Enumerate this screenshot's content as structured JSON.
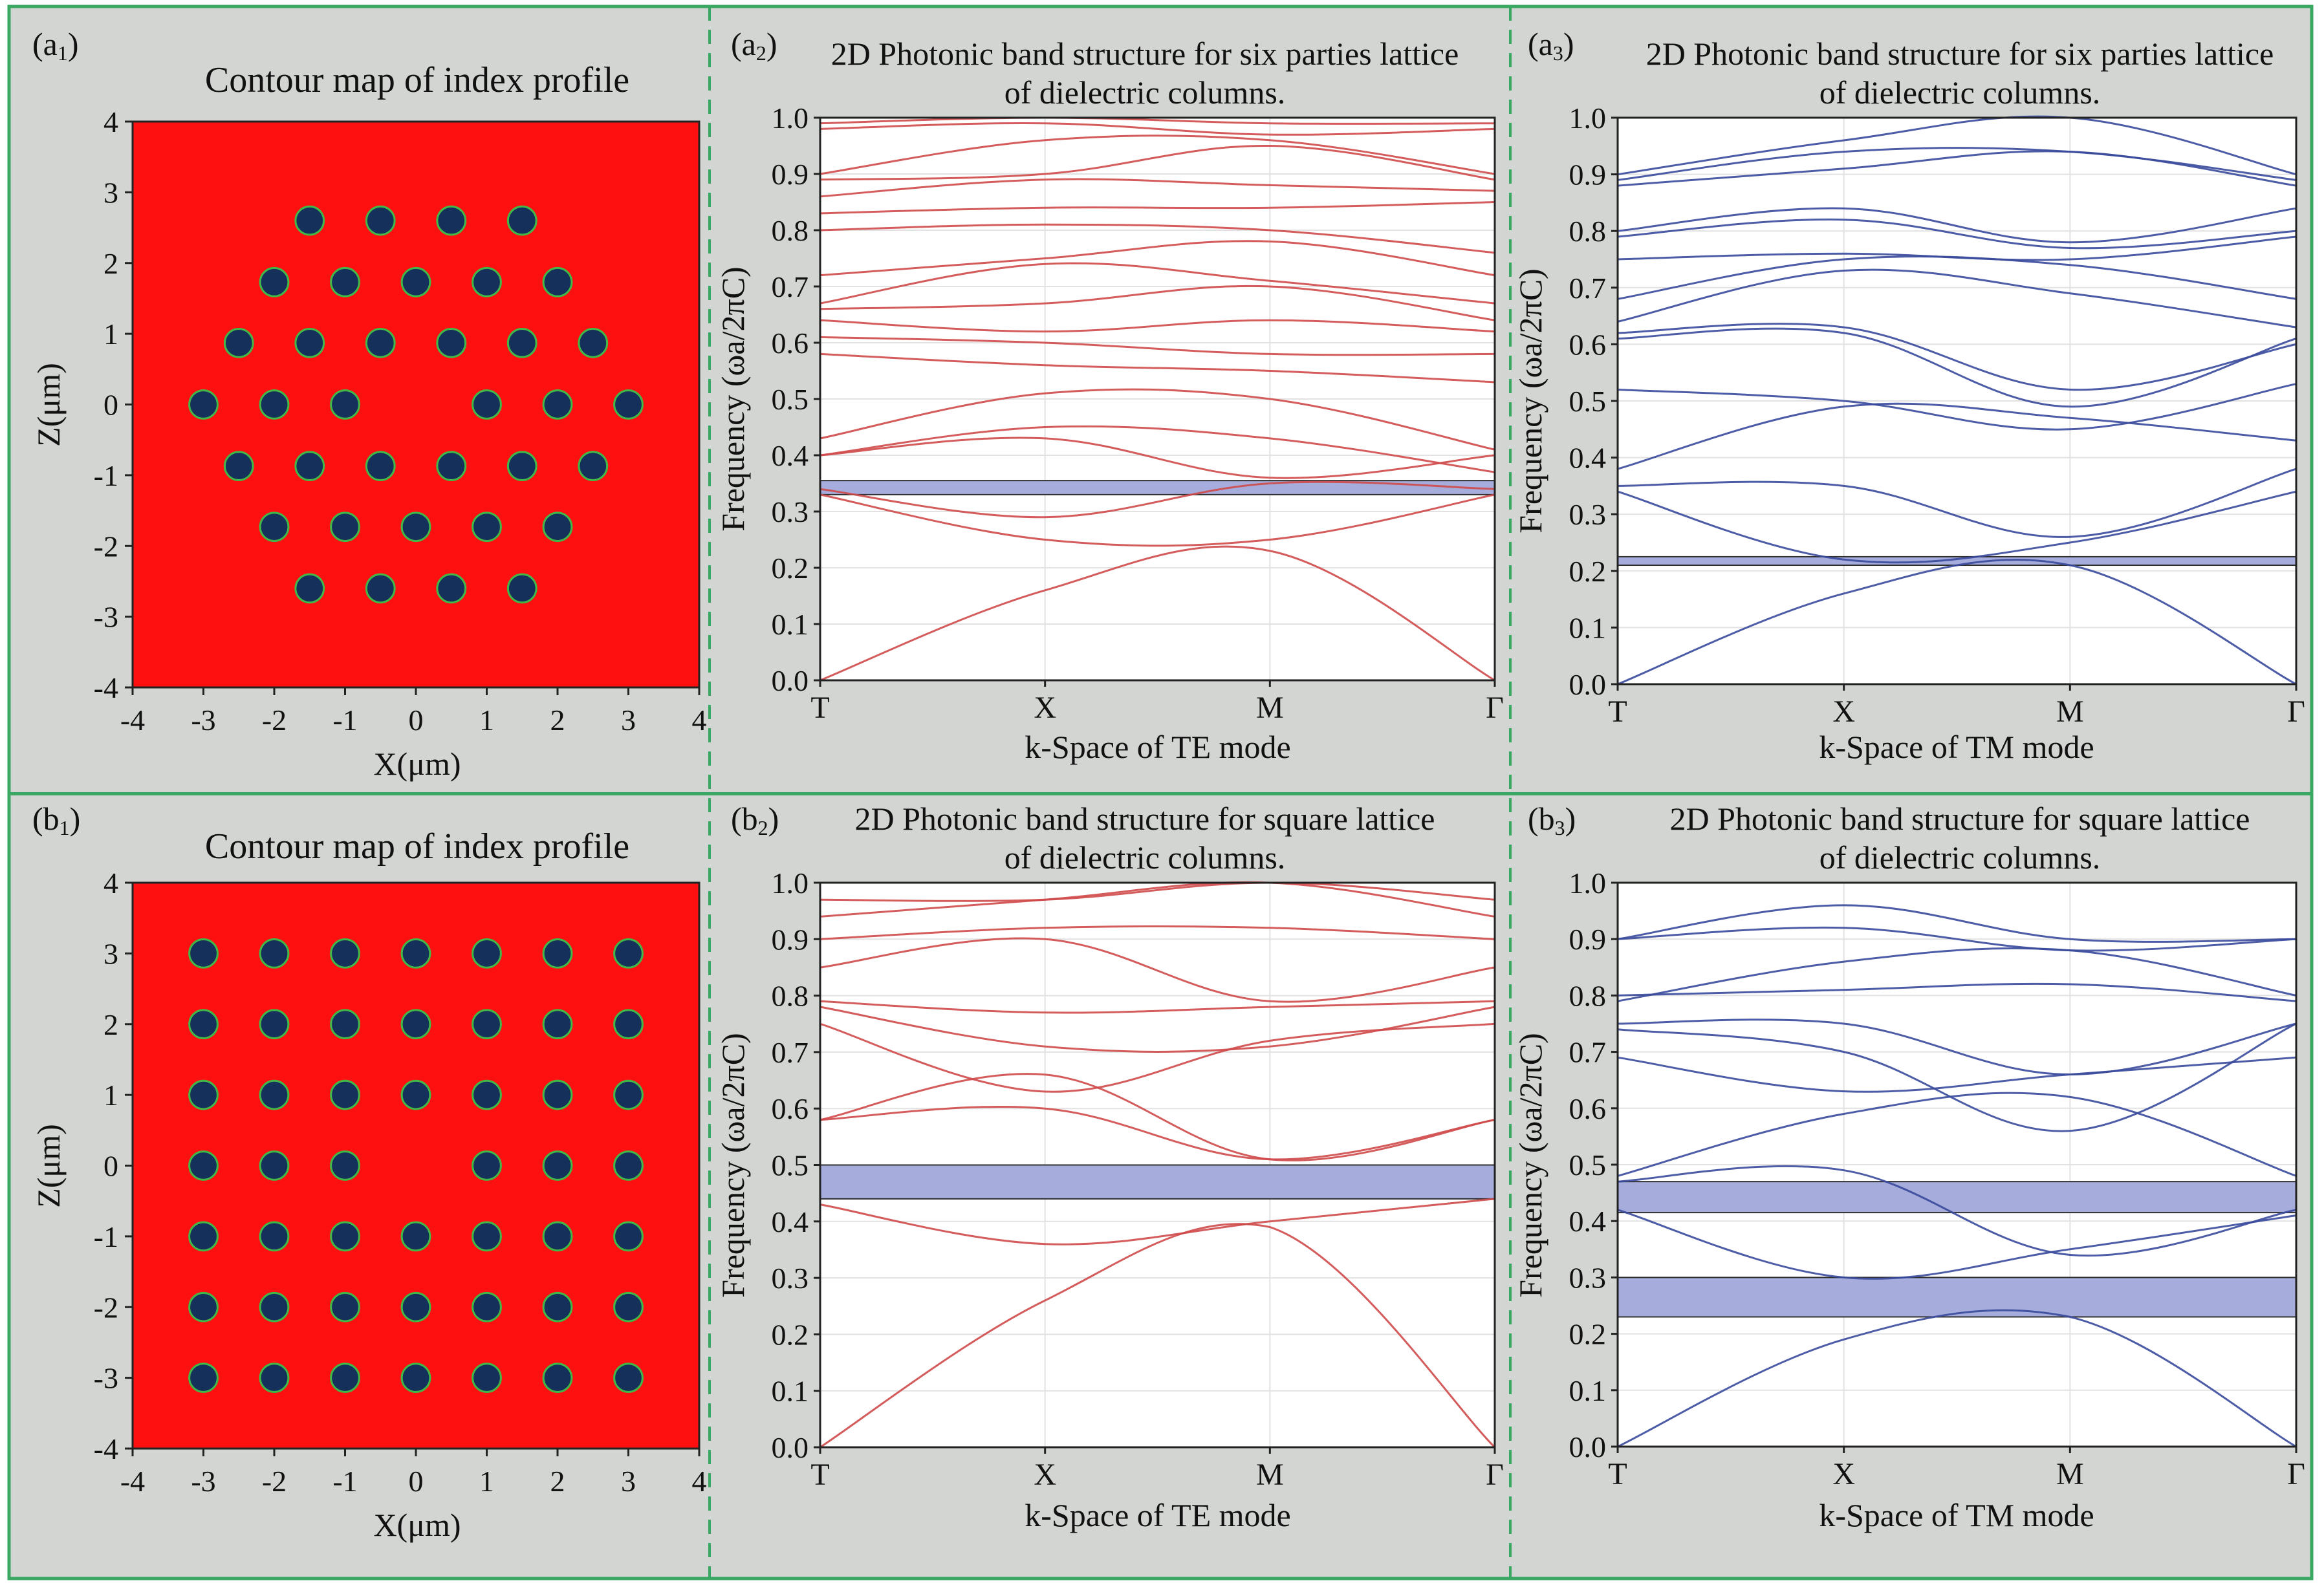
{
  "colors": {
    "panel_bg": "#d3d5d2",
    "frame": "#3aa863",
    "divider": "#3aa863",
    "index_bg": "#ff1010",
    "rod_fill": "#15305a",
    "rod_rim": "#41b848",
    "te_band": "#cf4a4a",
    "tm_band": "#3a4a9c",
    "gap_fill": "#a6acdc",
    "gap_stroke": "#303030",
    "grid": "#e2e2e2"
  },
  "panels": {
    "a1": {
      "label_main": "a",
      "label_sub": "1",
      "title": "Contour map of index profile",
      "xlabel": "X(μm)",
      "ylabel": "Z(μm)"
    },
    "a2": {
      "label_main": "a",
      "label_sub": "2",
      "title_line1": "2D Photonic band structure for six parties lattice",
      "title_line2": "of dielectric columns.",
      "xlabel": "k-Space of TE mode",
      "ylabel": "Frequency (ωa/2πC)"
    },
    "a3": {
      "label_main": "a",
      "label_sub": "3",
      "title_line1": "2D Photonic band structure for six parties lattice",
      "title_line2": "of dielectric columns.",
      "xlabel": "k-Space of TM mode",
      "ylabel": "Frequency (ωa/2πC)"
    },
    "b1": {
      "label_main": "b",
      "label_sub": "1",
      "title": "Contour map of index profile",
      "xlabel": "X(μm)",
      "ylabel": "Z(μm)"
    },
    "b2": {
      "label_main": "b",
      "label_sub": "2",
      "title_line1": "2D Photonic band structure for square lattice",
      "title_line2": "of dielectric columns.",
      "xlabel": "k-Space of TE mode",
      "ylabel": "Frequency (ωa/2πC)"
    },
    "b3": {
      "label_main": "b",
      "label_sub": "3",
      "title_line1": "2D Photonic band structure for square lattice",
      "title_line2": "of dielectric columns.",
      "xlabel": "k-Space of TM mode",
      "ylabel": "Frequency (ωa/2πC)"
    }
  },
  "chart_data": [
    {
      "id": "a1",
      "type": "contour-map",
      "title": "Contour map of index profile",
      "xlabel": "X(μm)",
      "ylabel": "Z(μm)",
      "xlim": [
        -4,
        4
      ],
      "ylim": [
        -4,
        4
      ],
      "xticks": [
        "-4",
        "-3",
        "-2",
        "-1",
        "0",
        "1",
        "2",
        "3",
        "4"
      ],
      "yticks": [
        "4",
        "3",
        "2",
        "1",
        "0",
        "-1",
        "-2",
        "-3",
        "-4"
      ],
      "rod_radius_um": 0.2,
      "rods": [
        [
          -1.5,
          2.6
        ],
        [
          -0.5,
          2.6
        ],
        [
          0.5,
          2.6
        ],
        [
          1.5,
          2.6
        ],
        [
          -2.0,
          1.73
        ],
        [
          -1.0,
          1.73
        ],
        [
          0.0,
          1.73
        ],
        [
          1.0,
          1.73
        ],
        [
          2.0,
          1.73
        ],
        [
          -2.5,
          0.87
        ],
        [
          -1.5,
          0.87
        ],
        [
          -0.5,
          0.87
        ],
        [
          0.5,
          0.87
        ],
        [
          1.5,
          0.87
        ],
        [
          2.5,
          0.87
        ],
        [
          -3.0,
          0
        ],
        [
          -2.0,
          0
        ],
        [
          -1.0,
          0
        ],
        [
          1.0,
          0
        ],
        [
          2.0,
          0
        ],
        [
          3.0,
          0
        ],
        [
          -2.5,
          -0.87
        ],
        [
          -1.5,
          -0.87
        ],
        [
          -0.5,
          -0.87
        ],
        [
          0.5,
          -0.87
        ],
        [
          1.5,
          -0.87
        ],
        [
          2.5,
          -0.87
        ],
        [
          -2.0,
          -1.73
        ],
        [
          -1.0,
          -1.73
        ],
        [
          0.0,
          -1.73
        ],
        [
          1.0,
          -1.73
        ],
        [
          2.0,
          -1.73
        ],
        [
          -1.5,
          -2.6
        ],
        [
          -0.5,
          -2.6
        ],
        [
          0.5,
          -2.6
        ],
        [
          1.5,
          -2.6
        ]
      ]
    },
    {
      "id": "b1",
      "type": "contour-map",
      "title": "Contour map of index profile",
      "xlabel": "X(μm)",
      "ylabel": "Z(μm)",
      "xlim": [
        -4,
        4
      ],
      "ylim": [
        -4,
        4
      ],
      "xticks": [
        "-4",
        "-3",
        "-2",
        "-1",
        "0",
        "1",
        "2",
        "3",
        "4"
      ],
      "yticks": [
        "4",
        "3",
        "2",
        "1",
        "0",
        "-1",
        "-2",
        "-3",
        "-4"
      ],
      "rod_radius_um": 0.2,
      "rods": [
        [
          -3,
          3
        ],
        [
          -2,
          3
        ],
        [
          -1,
          3
        ],
        [
          0,
          3
        ],
        [
          1,
          3
        ],
        [
          2,
          3
        ],
        [
          3,
          3
        ],
        [
          -3,
          2
        ],
        [
          -2,
          2
        ],
        [
          -1,
          2
        ],
        [
          0,
          2
        ],
        [
          1,
          2
        ],
        [
          2,
          2
        ],
        [
          3,
          2
        ],
        [
          -3,
          1
        ],
        [
          -2,
          1
        ],
        [
          -1,
          1
        ],
        [
          0,
          1
        ],
        [
          1,
          1
        ],
        [
          2,
          1
        ],
        [
          3,
          1
        ],
        [
          -3,
          0
        ],
        [
          -2,
          0
        ],
        [
          -1,
          0
        ],
        [
          1,
          0
        ],
        [
          2,
          0
        ],
        [
          3,
          0
        ],
        [
          -3,
          -1
        ],
        [
          -2,
          -1
        ],
        [
          -1,
          -1
        ],
        [
          0,
          -1
        ],
        [
          1,
          -1
        ],
        [
          2,
          -1
        ],
        [
          3,
          -1
        ],
        [
          -3,
          -2
        ],
        [
          -2,
          -2
        ],
        [
          -1,
          -2
        ],
        [
          0,
          -2
        ],
        [
          1,
          -2
        ],
        [
          2,
          -2
        ],
        [
          3,
          -2
        ],
        [
          -3,
          -3
        ],
        [
          -2,
          -3
        ],
        [
          -1,
          -3
        ],
        [
          0,
          -3
        ],
        [
          1,
          -3
        ],
        [
          2,
          -3
        ],
        [
          3,
          -3
        ]
      ]
    },
    {
      "id": "a2",
      "type": "line",
      "mode": "TE",
      "title": "2D Photonic band structure for six parties lattice of dielectric columns.",
      "xlabel": "k-Space of TE mode",
      "ylabel": "Frequency (ωa/2πC)",
      "ylim": [
        0,
        1
      ],
      "xlim": [
        0,
        3
      ],
      "kpoints": [
        {
          "x": 0,
          "label": "T"
        },
        {
          "x": 1,
          "label": "X"
        },
        {
          "x": 2,
          "label": "M"
        },
        {
          "x": 3,
          "label": "Γ"
        }
      ],
      "yticks": [
        "0.0",
        "0.1",
        "0.2",
        "0.3",
        "0.4",
        "0.5",
        "0.6",
        "0.7",
        "0.8",
        "0.9",
        "1.0"
      ],
      "gaps": [
        [
          0.33,
          0.355
        ]
      ],
      "bands": [
        [
          0.0,
          0.16,
          0.23,
          0.0
        ],
        [
          0.33,
          0.25,
          0.25,
          0.33
        ],
        [
          0.34,
          0.29,
          0.35,
          0.34
        ],
        [
          0.4,
          0.43,
          0.36,
          0.4
        ],
        [
          0.4,
          0.45,
          0.43,
          0.37
        ],
        [
          0.43,
          0.51,
          0.5,
          0.41
        ],
        [
          0.58,
          0.56,
          0.55,
          0.53
        ],
        [
          0.61,
          0.6,
          0.58,
          0.58
        ],
        [
          0.64,
          0.62,
          0.64,
          0.62
        ],
        [
          0.66,
          0.67,
          0.7,
          0.64
        ],
        [
          0.67,
          0.74,
          0.71,
          0.67
        ],
        [
          0.72,
          0.75,
          0.78,
          0.72
        ],
        [
          0.8,
          0.81,
          0.8,
          0.76
        ],
        [
          0.83,
          0.84,
          0.84,
          0.85
        ],
        [
          0.86,
          0.89,
          0.88,
          0.87
        ],
        [
          0.89,
          0.9,
          0.95,
          0.89
        ],
        [
          0.9,
          0.96,
          0.96,
          0.9
        ],
        [
          0.98,
          0.99,
          0.97,
          0.98
        ],
        [
          0.99,
          1.0,
          0.99,
          0.99
        ]
      ]
    },
    {
      "id": "a3",
      "type": "line",
      "mode": "TM",
      "title": "2D Photonic band structure for six parties lattice of dielectric columns.",
      "xlabel": "k-Space of TM mode",
      "ylabel": "Frequency (ωa/2πC)",
      "ylim": [
        0,
        1
      ],
      "xlim": [
        0,
        3
      ],
      "kpoints": [
        {
          "x": 0,
          "label": "T"
        },
        {
          "x": 1,
          "label": "X"
        },
        {
          "x": 2,
          "label": "M"
        },
        {
          "x": 3,
          "label": "Γ"
        }
      ],
      "yticks": [
        "0.0",
        "0.1",
        "0.2",
        "0.3",
        "0.4",
        "0.5",
        "0.6",
        "0.7",
        "0.8",
        "0.9",
        "1.0"
      ],
      "gaps": [
        [
          0.21,
          0.225
        ]
      ],
      "bands": [
        [
          0.0,
          0.16,
          0.21,
          0.0
        ],
        [
          0.34,
          0.22,
          0.25,
          0.34
        ],
        [
          0.35,
          0.35,
          0.26,
          0.38
        ],
        [
          0.38,
          0.49,
          0.47,
          0.43
        ],
        [
          0.52,
          0.5,
          0.45,
          0.53
        ],
        [
          0.61,
          0.62,
          0.49,
          0.61
        ],
        [
          0.62,
          0.63,
          0.52,
          0.6
        ],
        [
          0.64,
          0.73,
          0.69,
          0.63
        ],
        [
          0.68,
          0.75,
          0.74,
          0.68
        ],
        [
          0.75,
          0.76,
          0.75,
          0.79
        ],
        [
          0.79,
          0.82,
          0.77,
          0.8
        ],
        [
          0.8,
          0.84,
          0.78,
          0.84
        ],
        [
          0.88,
          0.91,
          0.94,
          0.88
        ],
        [
          0.89,
          0.94,
          0.94,
          0.89
        ],
        [
          0.9,
          0.96,
          1.0,
          0.9
        ]
      ]
    },
    {
      "id": "b2",
      "type": "line",
      "mode": "TE",
      "title": "2D Photonic band structure for square lattice of dielectric columns.",
      "xlabel": "k-Space of TE mode",
      "ylabel": "Frequency (ωa/2πC)",
      "ylim": [
        0,
        1
      ],
      "xlim": [
        0,
        3
      ],
      "kpoints": [
        {
          "x": 0,
          "label": "T"
        },
        {
          "x": 1,
          "label": "X"
        },
        {
          "x": 2,
          "label": "M"
        },
        {
          "x": 3,
          "label": "Γ"
        }
      ],
      "yticks": [
        "0.0",
        "0.1",
        "0.2",
        "0.3",
        "0.4",
        "0.5",
        "0.6",
        "0.7",
        "0.8",
        "0.9",
        "1.0"
      ],
      "gaps": [
        [
          0.44,
          0.5
        ]
      ],
      "bands": [
        [
          0.0,
          0.26,
          0.39,
          0.0
        ],
        [
          0.43,
          0.36,
          0.4,
          0.44
        ],
        [
          0.58,
          0.6,
          0.51,
          0.58
        ],
        [
          0.58,
          0.66,
          0.51,
          0.58
        ],
        [
          0.75,
          0.63,
          0.72,
          0.75
        ],
        [
          0.78,
          0.71,
          0.71,
          0.78
        ],
        [
          0.79,
          0.77,
          0.78,
          0.79
        ],
        [
          0.85,
          0.9,
          0.79,
          0.85
        ],
        [
          0.9,
          0.92,
          0.92,
          0.9
        ],
        [
          0.94,
          0.97,
          1.0,
          0.94
        ],
        [
          0.97,
          0.97,
          1.0,
          0.97
        ]
      ]
    },
    {
      "id": "b3",
      "type": "line",
      "mode": "TM",
      "title": "2D Photonic band structure for square lattice of dielectric columns.",
      "xlabel": "k-Space of TM mode",
      "ylabel": "Frequency (ωa/2πC)",
      "ylim": [
        0,
        1
      ],
      "xlim": [
        0,
        3
      ],
      "kpoints": [
        {
          "x": 0,
          "label": "T"
        },
        {
          "x": 1,
          "label": "X"
        },
        {
          "x": 2,
          "label": "M"
        },
        {
          "x": 3,
          "label": "Γ"
        }
      ],
      "yticks": [
        "0.0",
        "0.1",
        "0.2",
        "0.3",
        "0.4",
        "0.5",
        "0.6",
        "0.7",
        "0.8",
        "0.9",
        "1.0"
      ],
      "gaps": [
        [
          0.23,
          0.3
        ],
        [
          0.415,
          0.47
        ]
      ],
      "bands": [
        [
          0.0,
          0.19,
          0.23,
          0.0
        ],
        [
          0.42,
          0.3,
          0.35,
          0.41
        ],
        [
          0.47,
          0.49,
          0.34,
          0.42
        ],
        [
          0.48,
          0.59,
          0.62,
          0.48
        ],
        [
          0.69,
          0.63,
          0.66,
          0.69
        ],
        [
          0.74,
          0.7,
          0.56,
          0.75
        ],
        [
          0.75,
          0.75,
          0.66,
          0.75
        ],
        [
          0.8,
          0.81,
          0.82,
          0.79
        ],
        [
          0.79,
          0.86,
          0.88,
          0.8
        ],
        [
          0.9,
          0.92,
          0.88,
          0.9
        ],
        [
          0.9,
          0.96,
          0.9,
          0.9
        ]
      ]
    }
  ]
}
